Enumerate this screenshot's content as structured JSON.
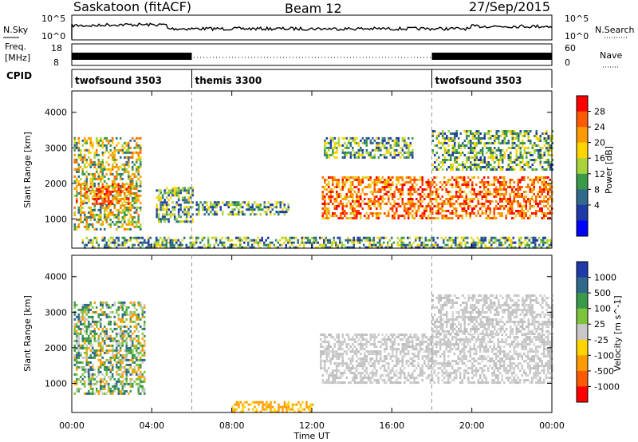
{
  "header": {
    "title": "Saskatoon (fitACF)",
    "beam": "Beam 12",
    "date": "27/Sep/2015"
  },
  "nsky_panel": {
    "label": "N.Sky",
    "ticks_left": [
      "10^5",
      "10^0"
    ],
    "ticks_right": [
      "10^5",
      "10^0"
    ],
    "right_label": "N.Search"
  },
  "freq_panel": {
    "label_line1": "Freq.",
    "label_line2": "[MHz]",
    "ticks_left": [
      "18",
      "8"
    ],
    "ticks_right": [
      "60",
      "0"
    ],
    "right_label": "Nave",
    "cpid_label": "CPID",
    "segments": [
      {
        "name": "twofsound 3503",
        "start_hour": 0,
        "end_hour": 6
      },
      {
        "name": "themis 3300",
        "start_hour": 6,
        "end_hour": 18
      },
      {
        "name": "twofsound 3503",
        "start_hour": 18,
        "end_hour": 24
      }
    ]
  },
  "chart_data": [
    {
      "type": "heatmap",
      "panel": "power",
      "ylabel": "Slant Range [km]",
      "yticks": [
        "4000",
        "3000",
        "2000",
        "1000"
      ],
      "ylim": [
        180,
        4600
      ],
      "xlim": [
        0,
        24
      ],
      "colorbar": {
        "label": "Power [dB]",
        "ticks": [
          "28",
          "24",
          "20",
          "16",
          "12",
          "8",
          "4"
        ],
        "colors": [
          "#ff0000",
          "#ff5a00",
          "#ff9b00",
          "#ffd400",
          "#a7d43a",
          "#3a9a4a",
          "#2f6a8a",
          "#1f3aa8",
          "#0000ff"
        ]
      },
      "regions": [
        {
          "x0": 0.1,
          "x1": 3.4,
          "y0": 700,
          "y1": 3300,
          "level": "high"
        },
        {
          "x0": 0.2,
          "x1": 2.8,
          "y0": 1400,
          "y1": 2000,
          "level": "max"
        },
        {
          "x0": 4.2,
          "x1": 6.0,
          "y0": 900,
          "y1": 1900,
          "level": "mid"
        },
        {
          "x0": 6.2,
          "x1": 10.8,
          "y0": 1100,
          "y1": 1500,
          "level": "low"
        },
        {
          "x0": 12.5,
          "x1": 24.0,
          "y0": 1000,
          "y1": 2200,
          "level": "max"
        },
        {
          "x0": 12.6,
          "x1": 17.0,
          "y0": 2700,
          "y1": 3300,
          "level": "mid"
        },
        {
          "x0": 18.0,
          "x1": 24.0,
          "y0": 2400,
          "y1": 3500,
          "level": "mid"
        },
        {
          "x0": 0.5,
          "x1": 24.0,
          "y0": 200,
          "y1": 500,
          "level": "low"
        }
      ]
    },
    {
      "type": "heatmap",
      "panel": "velocity",
      "ylabel": "Slant Range [km]",
      "yticks": [
        "4000",
        "3000",
        "2000",
        "1000"
      ],
      "ylim": [
        180,
        4600
      ],
      "xlim": [
        0,
        24
      ],
      "xlabel": "Time UT",
      "xticks": [
        "00:00",
        "04:00",
        "08:00",
        "12:00",
        "16:00",
        "20:00",
        "00:00"
      ],
      "colorbar": {
        "label": "Velocity [m s^-1]",
        "ticks": [
          "1000",
          "500",
          "100",
          "25",
          "-25",
          "-100",
          "-500",
          "-1000"
        ],
        "colors": [
          "#1f3aa8",
          "#2f6a8a",
          "#3a9a4a",
          "#7ec43a",
          "#c8c8c8",
          "#ffd400",
          "#ff9b00",
          "#ff5a00",
          "#ff0000"
        ]
      },
      "regions": [
        {
          "x0": 0.1,
          "x1": 3.6,
          "y0": 700,
          "y1": 3300,
          "level": "green"
        },
        {
          "x0": 12.4,
          "x1": 24.0,
          "y0": 1000,
          "y1": 2400,
          "level": "grey"
        },
        {
          "x0": 18.0,
          "x1": 24.0,
          "y0": 2400,
          "y1": 3500,
          "level": "grey"
        },
        {
          "x0": 8.0,
          "x1": 12.0,
          "y0": 200,
          "y1": 500,
          "level": "orange"
        }
      ]
    }
  ]
}
